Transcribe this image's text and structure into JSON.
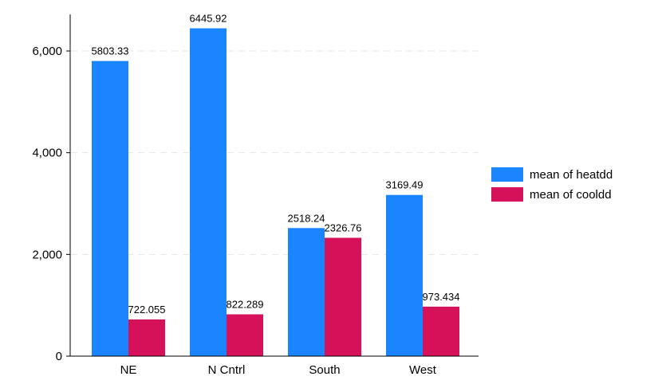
{
  "chart_data": {
    "type": "bar",
    "title": "",
    "xlabel": "",
    "ylabel": "",
    "categories": [
      "NE",
      "N Cntrl",
      "South",
      "West"
    ],
    "series": [
      {
        "name": "mean of heatdd",
        "color": "#1a85ff",
        "values": [
          5803.33,
          6445.92,
          2518.24,
          3169.49
        ],
        "labels": [
          "5803.33",
          "6445.92",
          "2518.24",
          "3169.49"
        ]
      },
      {
        "name": "mean of cooldd",
        "color": "#d41159",
        "values": [
          722.055,
          822.289,
          2326.76,
          973.434
        ],
        "labels": [
          "722.055",
          "822.289",
          "2326.76",
          "973.434"
        ]
      }
    ],
    "ylim": [
      0,
      6700
    ],
    "yticks": [
      0,
      2000,
      4000,
      6000
    ],
    "ytick_labels": [
      "0",
      "2,000",
      "4,000",
      "6,000"
    ],
    "grid": true,
    "legend_position": "right"
  }
}
